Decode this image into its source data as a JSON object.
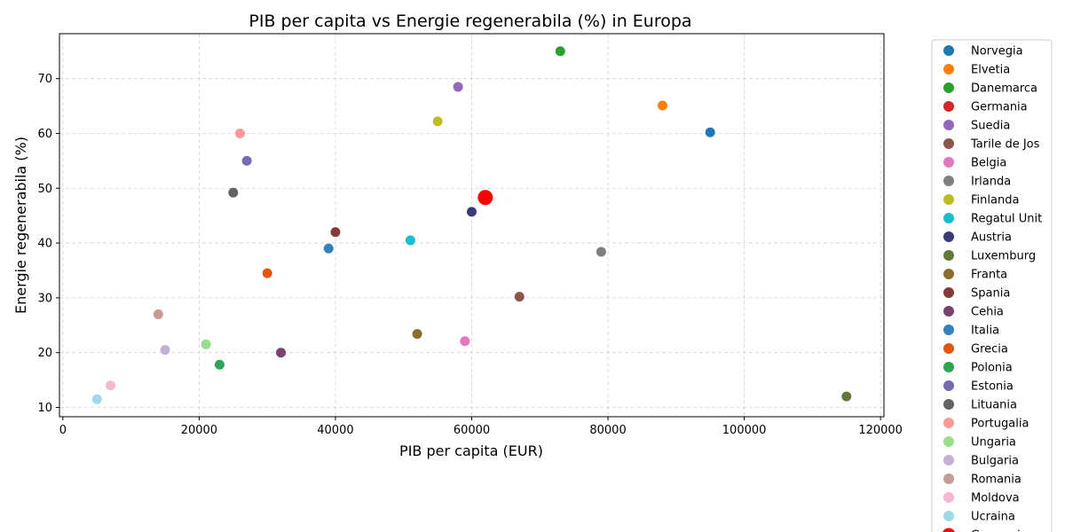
{
  "chart_data": {
    "type": "scatter",
    "title": "PIB per capita vs Energie regenerabila (%) in Europa",
    "xlabel": "PIB per capita (EUR)",
    "ylabel": "Energie regenerabila (%)",
    "xlim": [
      -500,
      120500
    ],
    "ylim": [
      8.3,
      78.2
    ],
    "xticks": [
      0,
      20000,
      40000,
      60000,
      80000,
      100000,
      120000
    ],
    "yticks": [
      10,
      20,
      30,
      40,
      50,
      60,
      70
    ],
    "grid": true,
    "legend_position": "outside-right",
    "series": [
      {
        "name": "Norvegia",
        "x": 95000,
        "y": 60.2,
        "color": "#1f77b4"
      },
      {
        "name": "Elvetia",
        "x": 88000,
        "y": 65.1,
        "color": "#ff7f0e"
      },
      {
        "name": "Danemarca",
        "x": 73000,
        "y": 75.0,
        "color": "#2ca02c"
      },
      {
        "name": "Germania",
        "x": 62000,
        "y": 48.3,
        "color": "#d62728"
      },
      {
        "name": "Suedia",
        "x": 58000,
        "y": 68.5,
        "color": "#9467bd"
      },
      {
        "name": "Tarile de Jos",
        "x": 67000,
        "y": 30.2,
        "color": "#8c564b"
      },
      {
        "name": "Belgia",
        "x": 59000,
        "y": 22.1,
        "color": "#e377c2"
      },
      {
        "name": "Irlanda",
        "x": 79000,
        "y": 38.4,
        "color": "#7f7f7f"
      },
      {
        "name": "Finlanda",
        "x": 55000,
        "y": 62.2,
        "color": "#bcbd22"
      },
      {
        "name": "Regatul Unit",
        "x": 51000,
        "y": 40.5,
        "color": "#17becf"
      },
      {
        "name": "Austria",
        "x": 60000,
        "y": 45.7,
        "color": "#393b79"
      },
      {
        "name": "Luxemburg",
        "x": 115000,
        "y": 12.0,
        "color": "#637939"
      },
      {
        "name": "Franta",
        "x": 52000,
        "y": 23.4,
        "color": "#8c6d31"
      },
      {
        "name": "Spania",
        "x": 40000,
        "y": 42.0,
        "color": "#843c39"
      },
      {
        "name": "Cehia",
        "x": 32000,
        "y": 20.0,
        "color": "#7b4173"
      },
      {
        "name": "Italia",
        "x": 39000,
        "y": 39.0,
        "color": "#3182bd"
      },
      {
        "name": "Grecia",
        "x": 30000,
        "y": 34.5,
        "color": "#e6550d"
      },
      {
        "name": "Polonia",
        "x": 23000,
        "y": 17.8,
        "color": "#31a354"
      },
      {
        "name": "Estonia",
        "x": 27000,
        "y": 55.0,
        "color": "#756bb1"
      },
      {
        "name": "Lituania",
        "x": 25000,
        "y": 49.2,
        "color": "#636363"
      },
      {
        "name": "Portugalia",
        "x": 26000,
        "y": 60.0,
        "color": "#ff9896"
      },
      {
        "name": "Ungaria",
        "x": 21000,
        "y": 21.5,
        "color": "#98df8a"
      },
      {
        "name": "Bulgaria",
        "x": 15000,
        "y": 20.5,
        "color": "#c5b0d5"
      },
      {
        "name": "Romania",
        "x": 14000,
        "y": 27.0,
        "color": "#c49c94"
      },
      {
        "name": "Moldova",
        "x": 7000,
        "y": 14.0,
        "color": "#f7b6d2"
      },
      {
        "name": "Ucraina",
        "x": 5000,
        "y": 11.5,
        "color": "#9edae5"
      },
      {
        "name": "Germania",
        "x": 62000,
        "y": 48.3,
        "color": "#ff0000",
        "highlight": true
      }
    ]
  }
}
